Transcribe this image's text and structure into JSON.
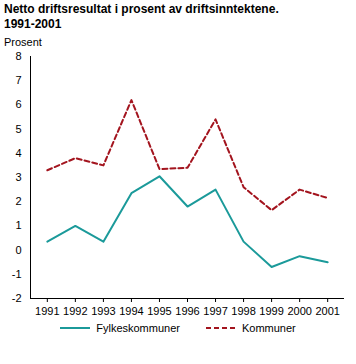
{
  "chart_data": {
    "type": "line",
    "title": "Netto driftsresultat i prosent av driftsinntektene.",
    "subtitle": "1991-2001",
    "y_label": "Prosent",
    "categories": [
      "1991",
      "1992",
      "1993",
      "1994",
      "1995",
      "1996",
      "1997",
      "1998",
      "1999",
      "2000",
      "2001"
    ],
    "series": [
      {
        "name": "Fylkeskommuner",
        "color": "#1b9a9a",
        "line_style": "solid",
        "values": [
          0.35,
          1.0,
          0.35,
          2.35,
          3.05,
          1.8,
          2.5,
          0.35,
          -0.7,
          -0.25,
          -0.5
        ]
      },
      {
        "name": "Kommuner",
        "color": "#a3141e",
        "line_style": "dashed",
        "values": [
          3.3,
          3.8,
          3.5,
          6.2,
          3.35,
          3.4,
          5.4,
          2.6,
          1.65,
          2.5,
          2.15
        ]
      }
    ],
    "ylim": [
      -2,
      8
    ],
    "yticks": [
      -2,
      -1,
      0,
      1,
      2,
      3,
      4,
      5,
      6,
      7,
      8
    ],
    "grid": false,
    "legend": "bottom"
  }
}
